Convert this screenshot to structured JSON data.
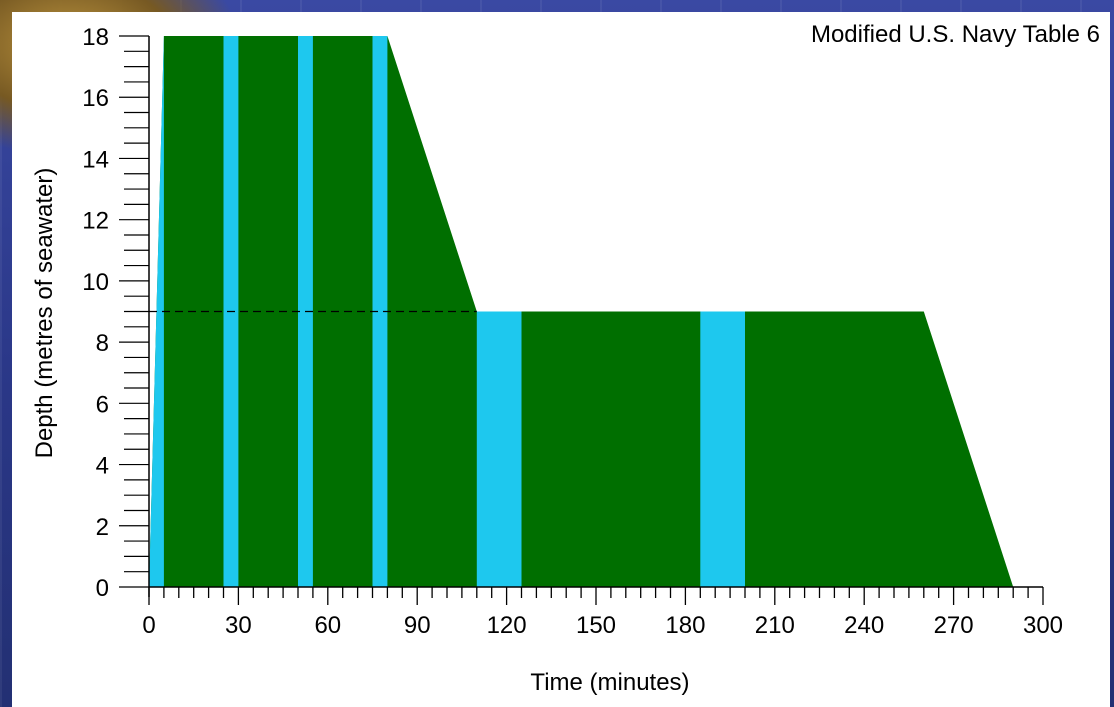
{
  "chart_data": {
    "type": "area",
    "title": "Modified U.S. Navy Table 6",
    "xlabel": "Time (minutes)",
    "ylabel": "Depth (metres of seawater)",
    "xlim": [
      0,
      300
    ],
    "ylim": [
      0,
      18
    ],
    "x_ticks": [
      "0",
      "30",
      "60",
      "90",
      "120",
      "150",
      "180",
      "210",
      "240",
      "270",
      "300"
    ],
    "y_ticks": [
      "0",
      "2",
      "4",
      "6",
      "8",
      "10",
      "12",
      "14",
      "16",
      "18"
    ],
    "profile": {
      "x": [
        0,
        5,
        80,
        110,
        260,
        290
      ],
      "y": [
        0,
        18,
        18,
        9,
        9,
        0
      ]
    },
    "oxygen_color": "#006f00",
    "air_break_color": "#1ec8ee",
    "air_breaks": [
      {
        "start": 0,
        "end": 5
      },
      {
        "start": 25,
        "end": 30
      },
      {
        "start": 50,
        "end": 55
      },
      {
        "start": 75,
        "end": 80
      },
      {
        "start": 110,
        "end": 125
      },
      {
        "start": 185,
        "end": 200
      }
    ],
    "reference_line": {
      "y": 9,
      "x_start": 0,
      "x_end": 110,
      "style": "dashed"
    }
  }
}
